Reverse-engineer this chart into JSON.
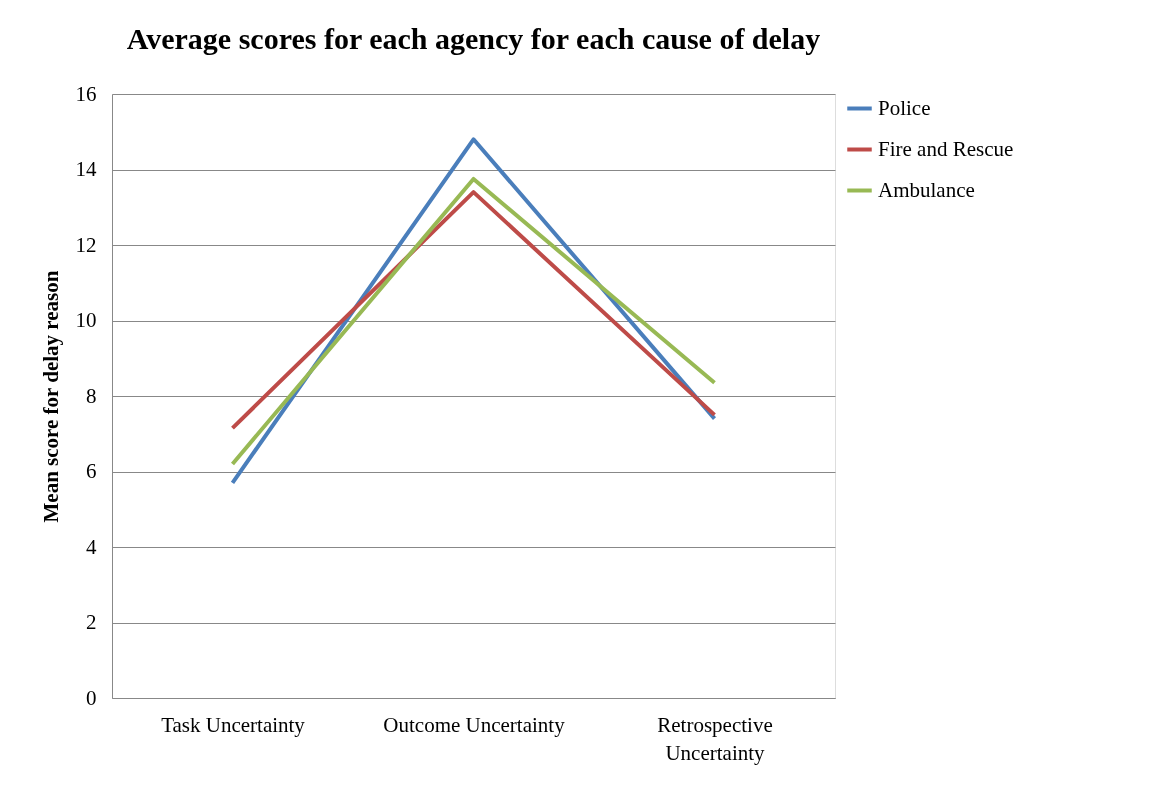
{
  "chart_data": {
    "type": "line",
    "title": "Average scores for each agency for each cause of delay",
    "ylabel": "Mean score for delay reason",
    "categories": [
      "Task Uncertainty",
      "Outcome Uncertainty",
      "Retrospective Uncertainty"
    ],
    "series": [
      {
        "name": "Police",
        "color": "#4a7ebb",
        "values": [
          5.7,
          14.8,
          7.4
        ]
      },
      {
        "name": "Fire and Rescue",
        "color": "#be4b48",
        "values": [
          7.15,
          13.4,
          7.5
        ]
      },
      {
        "name": "Ambulance",
        "color": "#98b954",
        "values": [
          6.2,
          13.75,
          8.35
        ]
      }
    ],
    "ylim": [
      0,
      16
    ],
    "yticks": [
      0,
      2,
      4,
      6,
      8,
      10,
      12,
      14,
      16
    ],
    "grid": "y",
    "legend": "right",
    "marker": "none",
    "line_style": "solid"
  }
}
